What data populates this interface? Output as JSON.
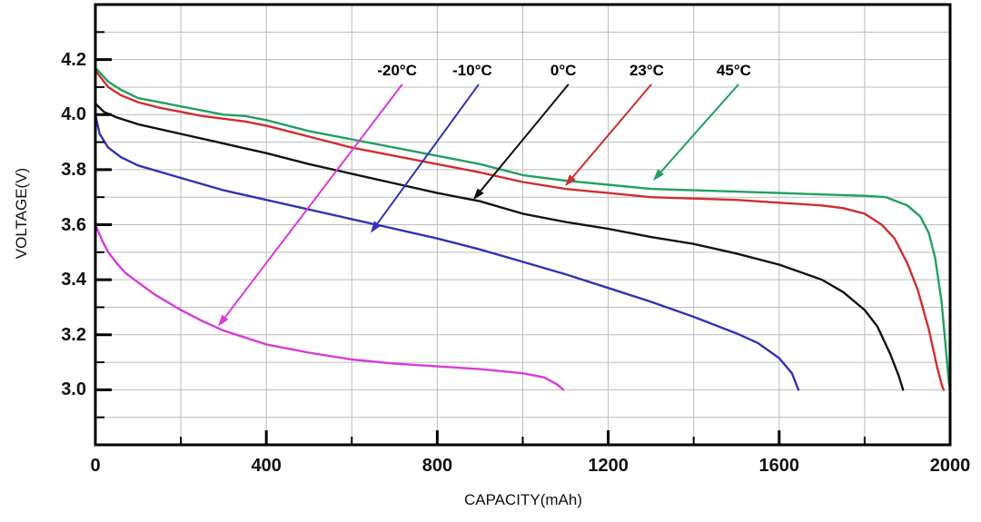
{
  "figure": {
    "background": "#ffffff",
    "frame_color": "#000000",
    "grid_color": "#bcbcbc",
    "tick_color": "#000000"
  },
  "chart_data": {
    "type": "line",
    "title": "",
    "xlabel": "CAPACITY(mAh)",
    "ylabel": "VOLTAGE(V)",
    "xlim": [
      0,
      2000
    ],
    "ylim": [
      2.8,
      4.4
    ],
    "grid": true,
    "x_major_ticks": [
      0,
      400,
      800,
      1200,
      1600,
      2000
    ],
    "x_minor_step": 200,
    "y_major_ticks": [
      3.0,
      3.2,
      3.4,
      3.6,
      3.8,
      4.0,
      4.2
    ],
    "y_minor_step": 0.1,
    "y_grid_range": [
      2.9,
      4.3
    ],
    "legend_position": "annotations-on-plot",
    "series": [
      {
        "name": "45°C",
        "color": "#22a061",
        "points": [
          [
            0,
            4.17
          ],
          [
            30,
            4.12
          ],
          [
            60,
            4.09
          ],
          [
            100,
            4.06
          ],
          [
            150,
            4.045
          ],
          [
            200,
            4.03
          ],
          [
            250,
            4.015
          ],
          [
            300,
            4.0
          ],
          [
            350,
            3.995
          ],
          [
            400,
            3.98
          ],
          [
            450,
            3.96
          ],
          [
            500,
            3.94
          ],
          [
            600,
            3.91
          ],
          [
            700,
            3.88
          ],
          [
            800,
            3.85
          ],
          [
            900,
            3.82
          ],
          [
            1000,
            3.78
          ],
          [
            1100,
            3.76
          ],
          [
            1200,
            3.745
          ],
          [
            1300,
            3.73
          ],
          [
            1400,
            3.725
          ],
          [
            1500,
            3.72
          ],
          [
            1600,
            3.715
          ],
          [
            1700,
            3.71
          ],
          [
            1800,
            3.705
          ],
          [
            1850,
            3.7
          ],
          [
            1900,
            3.67
          ],
          [
            1930,
            3.63
          ],
          [
            1950,
            3.57
          ],
          [
            1965,
            3.48
          ],
          [
            1980,
            3.32
          ],
          [
            1990,
            3.15
          ],
          [
            1997,
            3.03
          ],
          [
            2000,
            3.0
          ]
        ]
      },
      {
        "name": "23°C",
        "color": "#cf2e2e",
        "points": [
          [
            0,
            4.16
          ],
          [
            30,
            4.1
          ],
          [
            60,
            4.07
          ],
          [
            100,
            4.045
          ],
          [
            150,
            4.025
          ],
          [
            200,
            4.01
          ],
          [
            250,
            3.995
          ],
          [
            300,
            3.985
          ],
          [
            350,
            3.975
          ],
          [
            400,
            3.96
          ],
          [
            450,
            3.94
          ],
          [
            500,
            3.92
          ],
          [
            600,
            3.88
          ],
          [
            700,
            3.85
          ],
          [
            800,
            3.82
          ],
          [
            900,
            3.79
          ],
          [
            1000,
            3.755
          ],
          [
            1100,
            3.73
          ],
          [
            1200,
            3.715
          ],
          [
            1300,
            3.7
          ],
          [
            1400,
            3.695
          ],
          [
            1500,
            3.69
          ],
          [
            1600,
            3.68
          ],
          [
            1700,
            3.67
          ],
          [
            1750,
            3.66
          ],
          [
            1800,
            3.64
          ],
          [
            1840,
            3.6
          ],
          [
            1870,
            3.55
          ],
          [
            1900,
            3.46
          ],
          [
            1925,
            3.36
          ],
          [
            1950,
            3.22
          ],
          [
            1970,
            3.08
          ],
          [
            1980,
            3.02
          ],
          [
            1985,
            3.0
          ]
        ]
      },
      {
        "name": "0°C",
        "color": "#121212",
        "points": [
          [
            0,
            4.04
          ],
          [
            20,
            4.01
          ],
          [
            50,
            3.99
          ],
          [
            100,
            3.965
          ],
          [
            200,
            3.93
          ],
          [
            300,
            3.895
          ],
          [
            400,
            3.86
          ],
          [
            500,
            3.82
          ],
          [
            600,
            3.785
          ],
          [
            700,
            3.75
          ],
          [
            800,
            3.715
          ],
          [
            900,
            3.685
          ],
          [
            1000,
            3.64
          ],
          [
            1100,
            3.61
          ],
          [
            1200,
            3.585
          ],
          [
            1300,
            3.555
          ],
          [
            1400,
            3.53
          ],
          [
            1500,
            3.495
          ],
          [
            1600,
            3.455
          ],
          [
            1700,
            3.4
          ],
          [
            1750,
            3.355
          ],
          [
            1800,
            3.29
          ],
          [
            1830,
            3.23
          ],
          [
            1860,
            3.13
          ],
          [
            1880,
            3.05
          ],
          [
            1890,
            3.0
          ]
        ]
      },
      {
        "name": "-10°C",
        "color": "#3232b4",
        "points": [
          [
            0,
            4.0
          ],
          [
            10,
            3.93
          ],
          [
            30,
            3.88
          ],
          [
            60,
            3.845
          ],
          [
            100,
            3.815
          ],
          [
            200,
            3.77
          ],
          [
            300,
            3.725
          ],
          [
            400,
            3.69
          ],
          [
            500,
            3.655
          ],
          [
            600,
            3.62
          ],
          [
            700,
            3.585
          ],
          [
            800,
            3.55
          ],
          [
            900,
            3.51
          ],
          [
            1000,
            3.465
          ],
          [
            1100,
            3.42
          ],
          [
            1200,
            3.37
          ],
          [
            1300,
            3.32
          ],
          [
            1400,
            3.265
          ],
          [
            1500,
            3.205
          ],
          [
            1550,
            3.17
          ],
          [
            1600,
            3.115
          ],
          [
            1630,
            3.06
          ],
          [
            1645,
            3.0
          ]
        ]
      },
      {
        "name": "-20°C",
        "color": "#d93ad9",
        "points": [
          [
            0,
            3.6
          ],
          [
            15,
            3.545
          ],
          [
            30,
            3.5
          ],
          [
            50,
            3.46
          ],
          [
            70,
            3.425
          ],
          [
            100,
            3.39
          ],
          [
            140,
            3.345
          ],
          [
            200,
            3.29
          ],
          [
            250,
            3.25
          ],
          [
            300,
            3.215
          ],
          [
            350,
            3.19
          ],
          [
            400,
            3.165
          ],
          [
            450,
            3.15
          ],
          [
            500,
            3.135
          ],
          [
            600,
            3.11
          ],
          [
            700,
            3.095
          ],
          [
            800,
            3.085
          ],
          [
            900,
            3.075
          ],
          [
            1000,
            3.06
          ],
          [
            1050,
            3.045
          ],
          [
            1080,
            3.02
          ],
          [
            1095,
            3.0
          ]
        ]
      }
    ],
    "annotations": [
      {
        "label": "-20°C",
        "color": "#d93ad9",
        "label_at": [
          706,
          4.16
        ],
        "arrow_from": [
          718,
          4.11
        ],
        "arrow_to": [
          287,
          3.23
        ]
      },
      {
        "label": "-10°C",
        "color": "#3232b4",
        "label_at": [
          882,
          4.16
        ],
        "arrow_from": [
          897,
          4.11
        ],
        "arrow_to": [
          644,
          3.57
        ]
      },
      {
        "label": "0°C",
        "color": "#121212",
        "label_at": [
          1095,
          4.16
        ],
        "arrow_from": [
          1107,
          4.11
        ],
        "arrow_to": [
          884,
          3.69
        ]
      },
      {
        "label": "23°C",
        "color": "#cf2e2e",
        "label_at": [
          1290,
          4.16
        ],
        "arrow_from": [
          1301,
          4.11
        ],
        "arrow_to": [
          1099,
          3.74
        ]
      },
      {
        "label": "45°C",
        "color": "#22a061",
        "label_at": [
          1494,
          4.16
        ],
        "arrow_from": [
          1505,
          4.11
        ],
        "arrow_to": [
          1305,
          3.76
        ]
      }
    ]
  }
}
